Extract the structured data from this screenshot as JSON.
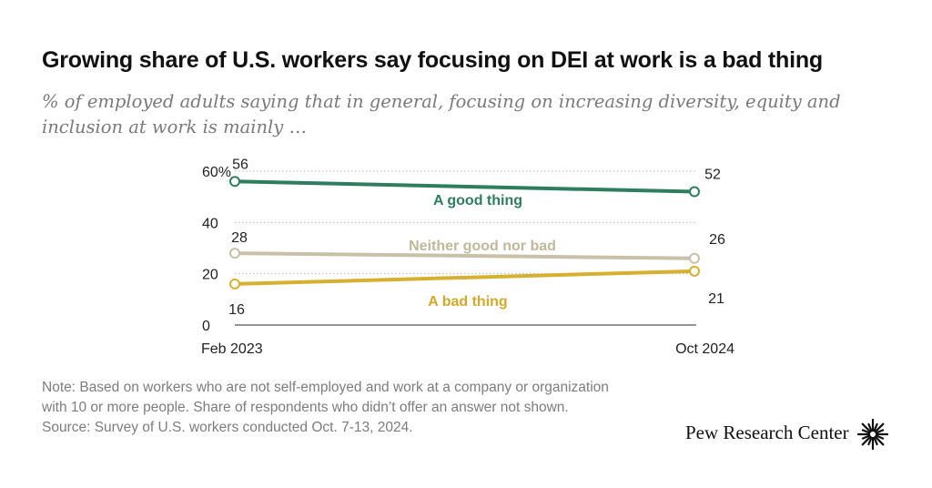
{
  "title": "Growing share of U.S. workers say focusing on DEI at work is a bad thing",
  "subtitle": "% of employed adults saying that in general, focusing on increasing diversity, equity and inclusion at work is mainly …",
  "chart_data": {
    "type": "line",
    "x": [
      "Feb 2023",
      "Oct 2024"
    ],
    "yticks": [
      "0",
      "20",
      "40",
      "60%"
    ],
    "ytick_values": [
      0,
      20,
      40,
      60
    ],
    "ylim": [
      0,
      60
    ],
    "grid": true,
    "series": [
      {
        "name": "A good thing",
        "values": [
          56,
          52
        ],
        "color": "#2e7d5e"
      },
      {
        "name": "Neither good nor bad",
        "values": [
          28,
          26
        ],
        "color": "#c8c0a8"
      },
      {
        "name": "A bad thing",
        "values": [
          16,
          21
        ],
        "color": "#d8b030"
      }
    ]
  },
  "notes": {
    "line1": "Note: Based on workers who are not self-employed and work at a company or organization",
    "line2": "with 10 or more people. Share of respondents who didn’t offer an answer not shown.",
    "line3": "Source: Survey of U.S. workers conducted Oct. 7-13, 2024."
  },
  "brand": {
    "name": "Pew Research Center",
    "logo_icon": "pew-sunburst-logo"
  }
}
